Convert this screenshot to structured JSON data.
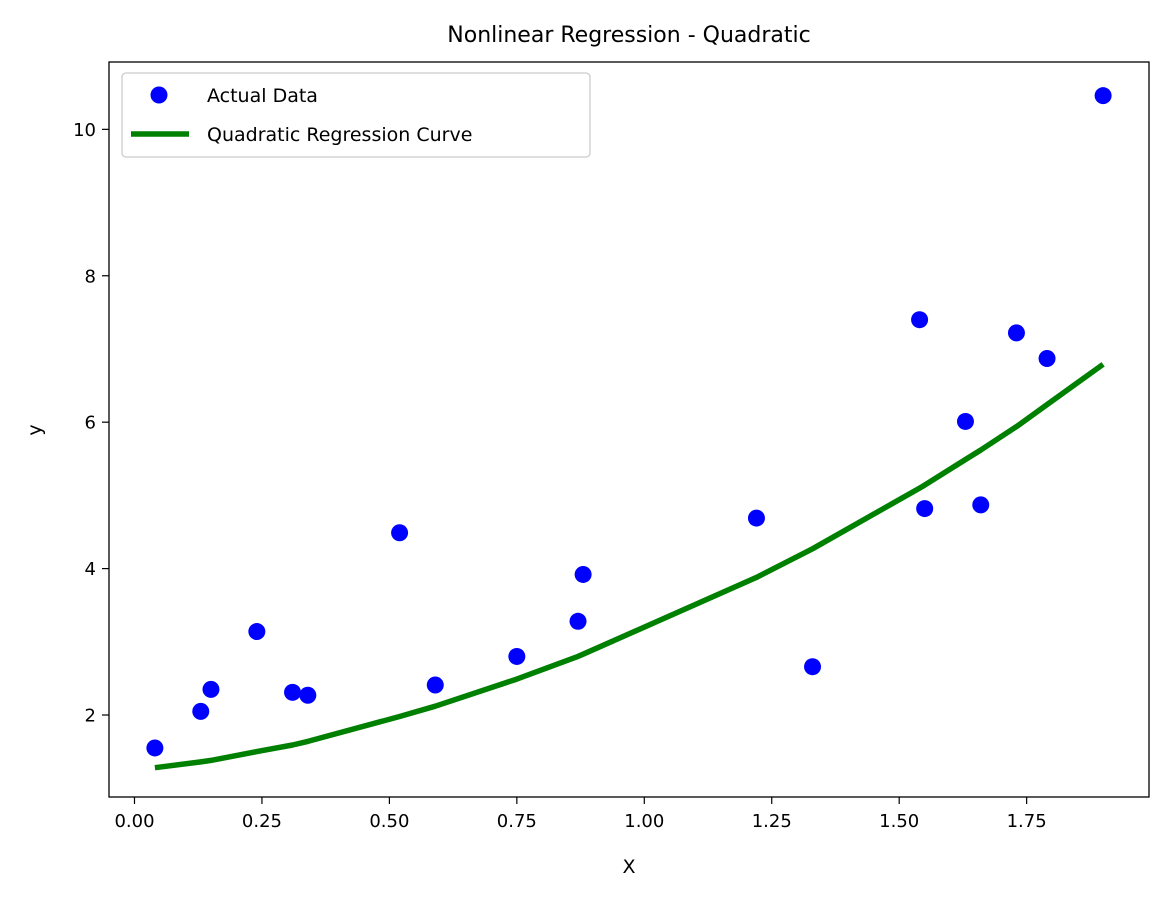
{
  "chart_data": {
    "type": "scatter",
    "title": "Nonlinear Regression - Quadratic",
    "xlabel": "X",
    "ylabel": "y",
    "xlim": [
      -0.05,
      1.99
    ],
    "ylim": [
      0.88,
      10.92
    ],
    "xticks": [
      0.0,
      0.25,
      0.5,
      0.75,
      1.0,
      1.25,
      1.5,
      1.75
    ],
    "xtick_labels": [
      "0.00",
      "0.25",
      "0.50",
      "0.75",
      "1.00",
      "1.25",
      "1.50",
      "1.75"
    ],
    "yticks": [
      2,
      4,
      6,
      8,
      10
    ],
    "ytick_labels": [
      "2",
      "4",
      "6",
      "8",
      "10"
    ],
    "grid": false,
    "legend_position": "top-left",
    "series": [
      {
        "name": "Actual Data",
        "kind": "scatter",
        "color": "#0000ff",
        "points": [
          [
            0.04,
            1.55
          ],
          [
            0.13,
            2.05
          ],
          [
            0.15,
            2.35
          ],
          [
            0.24,
            3.14
          ],
          [
            0.31,
            2.31
          ],
          [
            0.34,
            2.27
          ],
          [
            0.52,
            4.49
          ],
          [
            0.59,
            2.41
          ],
          [
            0.75,
            2.8
          ],
          [
            0.87,
            3.28
          ],
          [
            0.88,
            3.92
          ],
          [
            1.22,
            4.69
          ],
          [
            1.33,
            2.66
          ],
          [
            1.54,
            7.4
          ],
          [
            1.55,
            4.82
          ],
          [
            1.63,
            6.01
          ],
          [
            1.66,
            4.87
          ],
          [
            1.73,
            7.22
          ],
          [
            1.79,
            6.87
          ],
          [
            1.9,
            10.46
          ]
        ]
      },
      {
        "name": "Quadratic Regression Curve",
        "kind": "line",
        "color": "#008000",
        "points": [
          [
            0.04,
            1.28
          ],
          [
            0.13,
            1.36
          ],
          [
            0.15,
            1.38
          ],
          [
            0.24,
            1.5
          ],
          [
            0.31,
            1.59
          ],
          [
            0.34,
            1.64
          ],
          [
            0.52,
            1.98
          ],
          [
            0.59,
            2.12
          ],
          [
            0.75,
            2.49
          ],
          [
            0.87,
            2.8
          ],
          [
            0.88,
            2.83
          ],
          [
            1.22,
            3.88
          ],
          [
            1.33,
            4.27
          ],
          [
            1.54,
            5.1
          ],
          [
            1.55,
            5.14
          ],
          [
            1.63,
            5.49
          ],
          [
            1.66,
            5.62
          ],
          [
            1.73,
            5.94
          ],
          [
            1.79,
            6.24
          ],
          [
            1.9,
            6.79
          ]
        ]
      }
    ]
  }
}
